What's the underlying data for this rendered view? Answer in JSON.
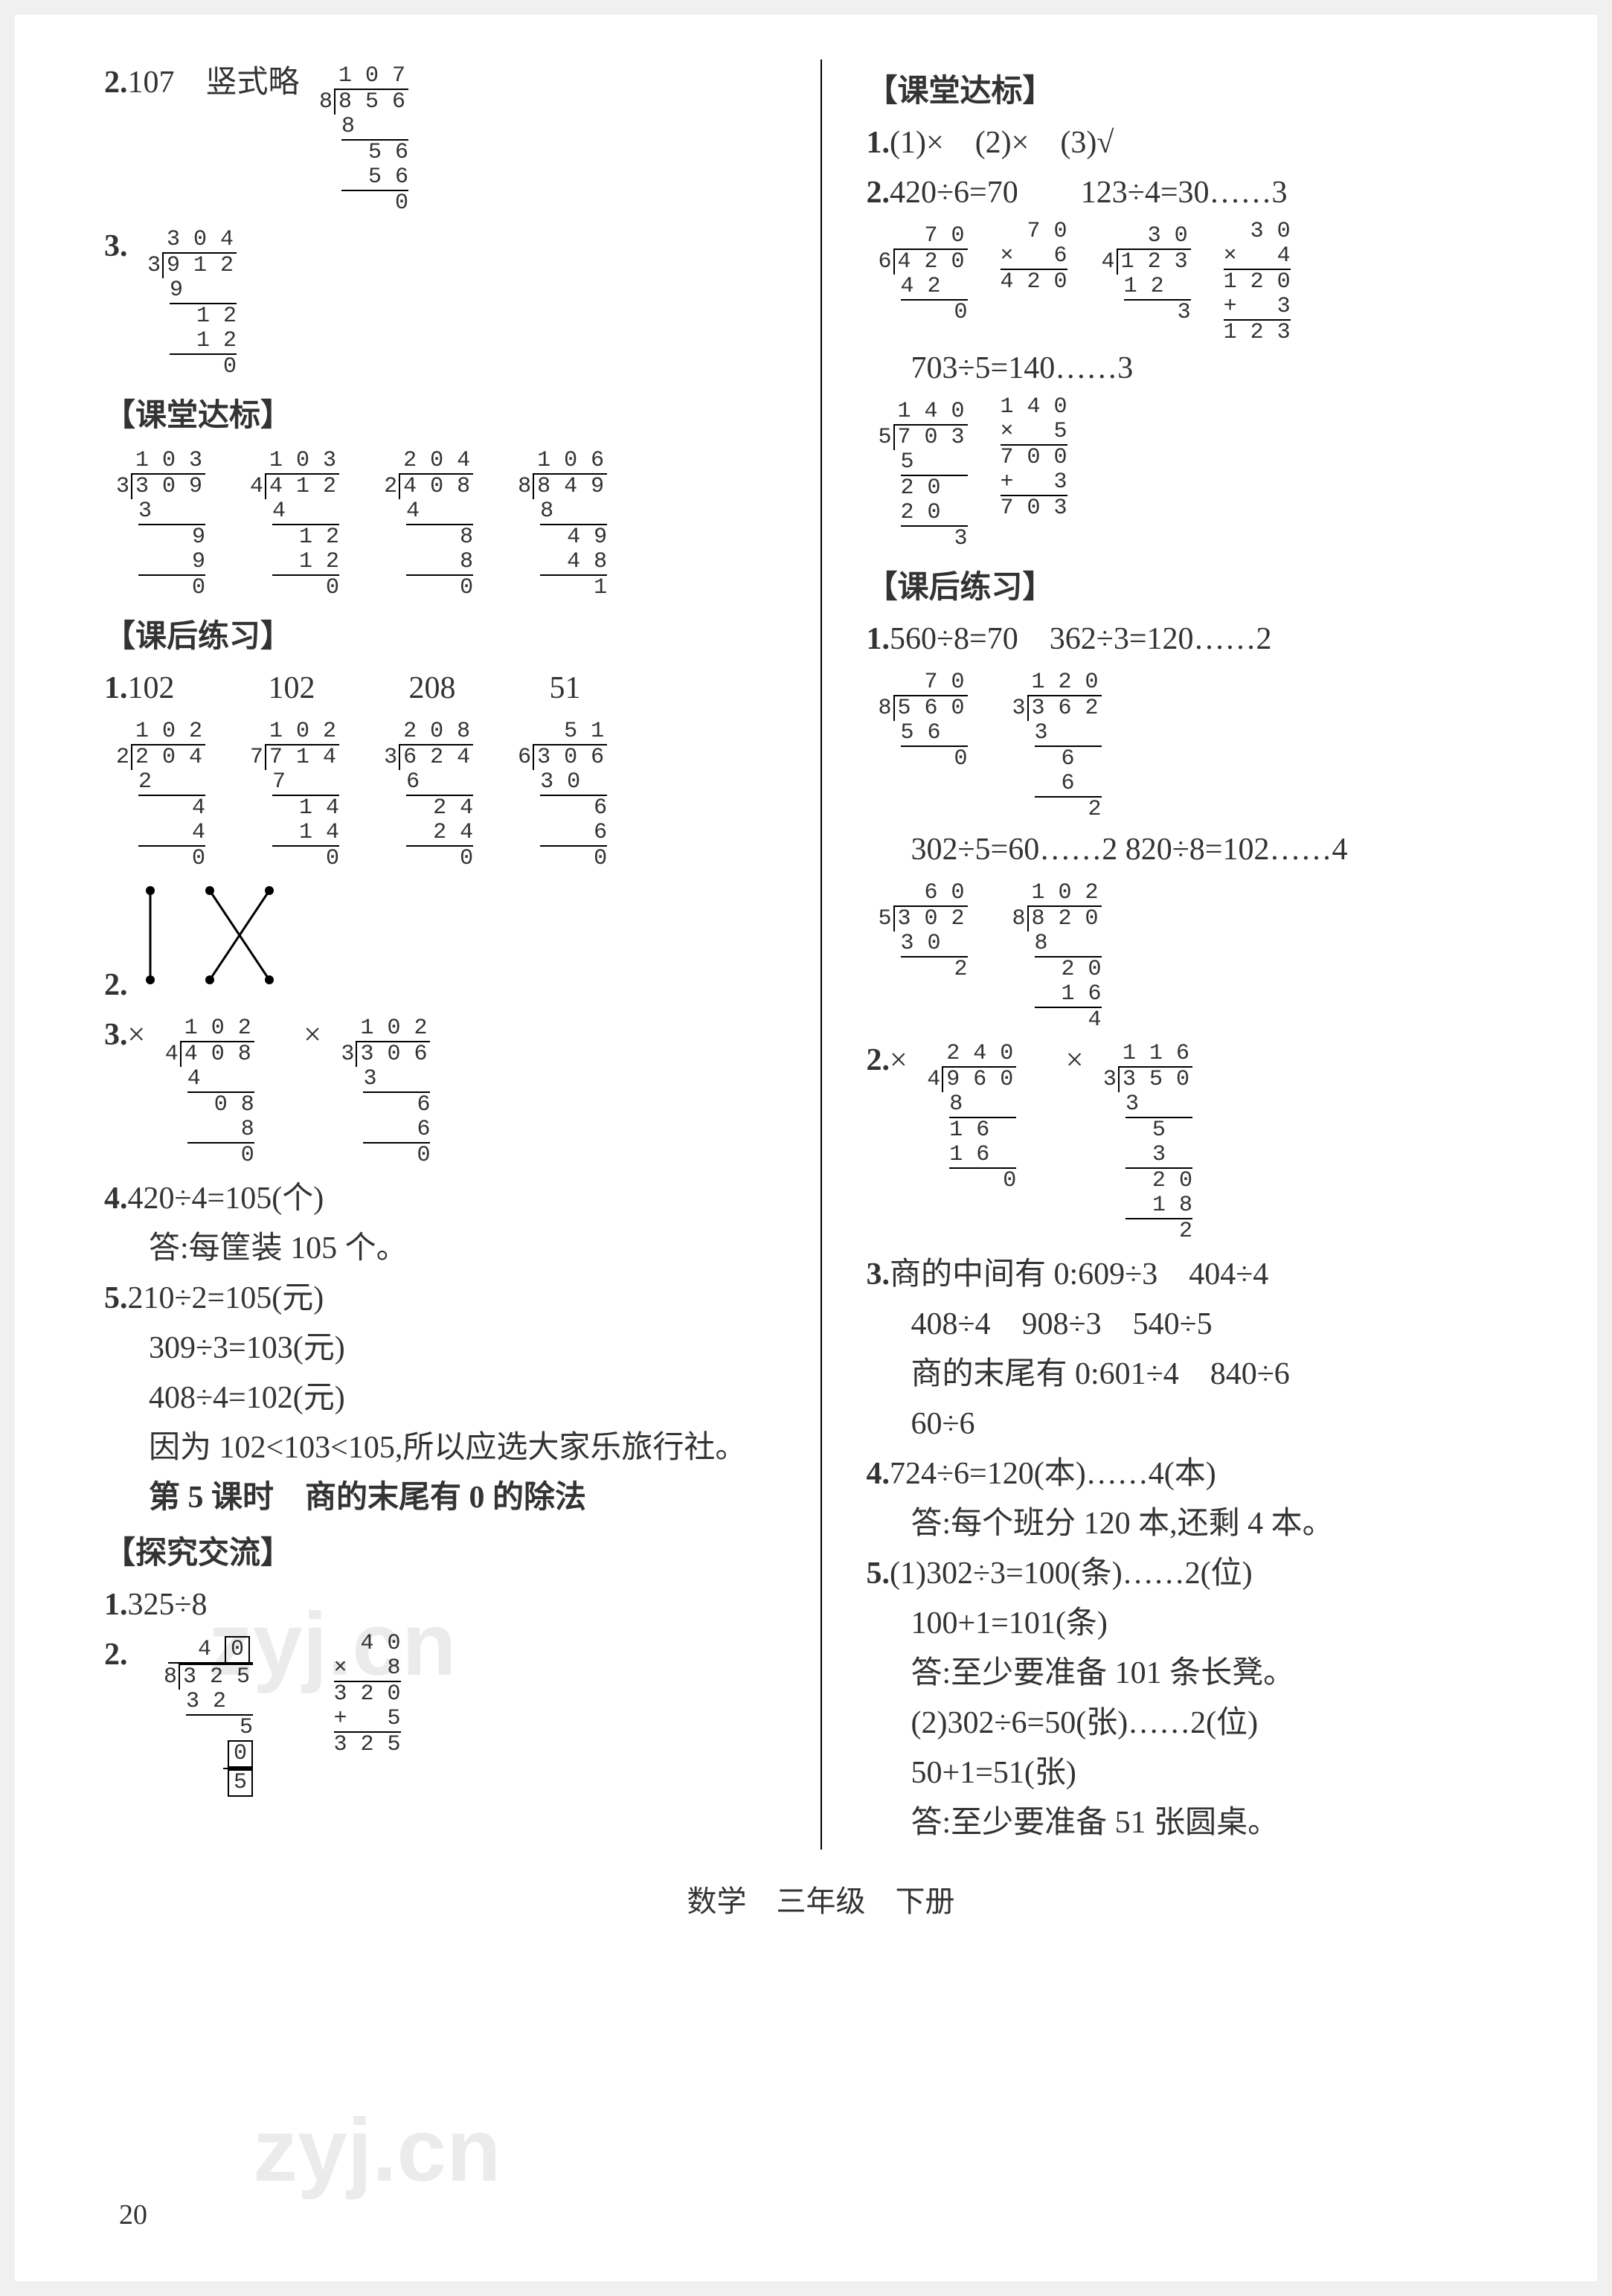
{
  "left": {
    "q2": {
      "num": "2.",
      "ans": "107",
      "note": "竖式略"
    },
    "q2_ld": {
      "quotient": "1 0 7",
      "divisor": "8",
      "dividend": "8 5 6",
      "steps": [
        "8    ",
        "  5 6",
        "  5 6",
        "    0"
      ]
    },
    "q3": {
      "num": "3."
    },
    "q3_ld": {
      "quotient": "3 0 4",
      "divisor": "3",
      "dividend": "9 1 2",
      "steps": [
        "9    ",
        "  1 2",
        "  1 2",
        "    0"
      ]
    },
    "sec_ketang": "【课堂达标】",
    "ketang_lds": [
      {
        "quotient": "1 0 3",
        "divisor": "3",
        "dividend": "3 0 9",
        "steps": [
          "3    ",
          "    9",
          "    9",
          "    0"
        ]
      },
      {
        "quotient": "1 0 3",
        "divisor": "4",
        "dividend": "4 1 2",
        "steps": [
          "4    ",
          "  1 2",
          "  1 2",
          "    0"
        ]
      },
      {
        "quotient": "2 0 4",
        "divisor": "2",
        "dividend": "4 0 8",
        "steps": [
          "4    ",
          "    8",
          "    8",
          "    0"
        ]
      },
      {
        "quotient": "1 0 6",
        "divisor": "8",
        "dividend": "8 4 9",
        "steps": [
          "8    ",
          "  4 9",
          "  4 8",
          "    1"
        ]
      }
    ],
    "sec_kehou": "【课后练习】",
    "kh_q1": {
      "num": "1.",
      "answers": [
        "102",
        "102",
        "208",
        "51"
      ]
    },
    "kh_q1_lds": [
      {
        "quotient": "1 0 2",
        "divisor": "2",
        "dividend": "2 0 4",
        "steps": [
          "2    ",
          "    4",
          "    4",
          "    0"
        ]
      },
      {
        "quotient": "1 0 2",
        "divisor": "7",
        "dividend": "7 1 4",
        "steps": [
          "7    ",
          "  1 4",
          "  1 4",
          "    0"
        ]
      },
      {
        "quotient": "2 0 8",
        "divisor": "3",
        "dividend": "6 2 4",
        "steps": [
          "6    ",
          "  2 4",
          "  2 4",
          "    0"
        ]
      },
      {
        "quotient": "  5 1",
        "divisor": "6",
        "dividend": "3 0 6",
        "steps": [
          "3 0  ",
          "    6",
          "    6",
          "    0"
        ]
      }
    ],
    "kh_q2": {
      "num": "2."
    },
    "kh_q3": {
      "num": "3.",
      "marks": [
        "×",
        "×"
      ]
    },
    "kh_q3_lds": [
      {
        "quotient": "1 0 2",
        "divisor": "4",
        "dividend": "4 0 8",
        "steps": [
          "4    ",
          "  0 8",
          "    8",
          "    0"
        ]
      },
      {
        "quotient": "1 0 2",
        "divisor": "3",
        "dividend": "3 0 6",
        "steps": [
          "3    ",
          "    6",
          "    6",
          "    0"
        ]
      }
    ],
    "kh_q4": {
      "num": "4.",
      "expr": "420÷4=105(个)",
      "ans": "答:每筐装 105 个。"
    },
    "kh_q5": {
      "num": "5.",
      "l1": "210÷2=105(元)",
      "l2": "309÷3=103(元)",
      "l3": "408÷4=102(元)",
      "l4": "因为 102<103<105,所以应选大家乐旅行社。"
    },
    "lesson5": "第 5 课时　商的末尾有 0 的除法",
    "sec_tanjiu": "【探究交流】",
    "tj_q1": {
      "num": "1.",
      "expr": "325÷8"
    },
    "tj_q2": {
      "num": "2."
    },
    "tj_q2_ld": {
      "quotient_pre": "4",
      "quotient_box": "0",
      "divisor": "8",
      "dividend": "3 2 5",
      "steps": [
        "3 2  ",
        "    5"
      ],
      "box2": "0",
      "box3": "5"
    },
    "tj_q2_mult": [
      "  4 0",
      "×   8",
      "3 2 0",
      "+   5",
      "3 2 5"
    ]
  },
  "right": {
    "sec_ketang": "【课堂达标】",
    "kt_q1": {
      "num": "1.",
      "parts": [
        "(1)×",
        "(2)×",
        "(3)√"
      ]
    },
    "kt_q2": {
      "num": "2.",
      "exprs": [
        "420÷6=70",
        "123÷4=30……3"
      ]
    },
    "kt_q2_lds": [
      {
        "quotient": "  7 0",
        "divisor": "6",
        "dividend": "4 2 0",
        "steps": [
          "4 2  ",
          "    0"
        ]
      },
      {
        "quotient": "  3 0",
        "divisor": "4",
        "dividend": "1 2 3",
        "steps": [
          "1 2  ",
          "    3"
        ]
      }
    ],
    "kt_q2_mults": [
      [
        "  7 0",
        "×   6",
        "4 2 0"
      ],
      [
        "  3 0",
        "×   4",
        "1 2 0",
        "+   3",
        "1 2 3"
      ]
    ],
    "kt_q2b": "703÷5=140……3",
    "kt_q2b_ld": {
      "quotient": "1 4 0",
      "divisor": "5",
      "dividend": "7 0 3",
      "steps": [
        "5    ",
        "2 0  ",
        "2 0  ",
        "    3"
      ]
    },
    "kt_q2b_mult": [
      "1 4 0",
      "×   5",
      "7 0 0",
      "+   3",
      "7 0 3"
    ],
    "sec_kehou": "【课后练习】",
    "kh_q1": {
      "num": "1.",
      "exprs": [
        "560÷8=70",
        "362÷3=120……2"
      ]
    },
    "kh_q1_lds": [
      {
        "quotient": "  7 0",
        "divisor": "8",
        "dividend": "5 6 0",
        "steps": [
          "5 6  ",
          "    0"
        ]
      },
      {
        "quotient": "1 2 0",
        "divisor": "3",
        "dividend": "3 6 2",
        "steps": [
          "3    ",
          "  6  ",
          "  6  ",
          "    2"
        ]
      }
    ],
    "kh_q1b": {
      "exprs": [
        "302÷5=60……2",
        "820÷8=102……4"
      ]
    },
    "kh_q1b_lds": [
      {
        "quotient": "  6 0",
        "divisor": "5",
        "dividend": "3 0 2",
        "steps": [
          "3 0  ",
          "    2"
        ]
      },
      {
        "quotient": "1 0 2",
        "divisor": "8",
        "dividend": "8 2 0",
        "steps": [
          "8    ",
          "  2 0",
          "  1 6",
          "    4"
        ]
      }
    ],
    "kh_q2": {
      "num": "2.",
      "marks": [
        "×",
        "×"
      ]
    },
    "kh_q2_lds": [
      {
        "quotient": "2 4 0",
        "divisor": "4",
        "dividend": "9 6 0",
        "steps": [
          "8    ",
          "1 6  ",
          "1 6  ",
          "    0"
        ]
      },
      {
        "quotient": "1 1 6",
        "divisor": "3",
        "dividend": "3 5 0",
        "steps": [
          "3    ",
          "  5  ",
          "  3  ",
          "  2 0",
          "  1 8",
          "    2"
        ]
      }
    ],
    "kh_q3": {
      "num": "3.",
      "l1": "商的中间有 0:609÷3　404÷4",
      "l2": "408÷4　908÷3　540÷5",
      "l3": "商的末尾有 0:601÷4　840÷6",
      "l4": "60÷6"
    },
    "kh_q4": {
      "num": "4.",
      "expr": "724÷6=120(本)……4(本)",
      "ans": "答:每个班分 120 本,还剩 4 本。"
    },
    "kh_q5": {
      "num": "5.",
      "p1a": "(1)302÷3=100(条)……2(位)",
      "p1b": "100+1=101(条)",
      "p1c": "答:至少要准备 101 条长凳。",
      "p2a": "(2)302÷6=50(张)……2(位)",
      "p2b": "50+1=51(张)",
      "p2c": "答:至少要准备 51 张圆桌。"
    }
  },
  "footer": "数学　三年级　下册",
  "page_number": "20",
  "watermark": "zyj.cn"
}
